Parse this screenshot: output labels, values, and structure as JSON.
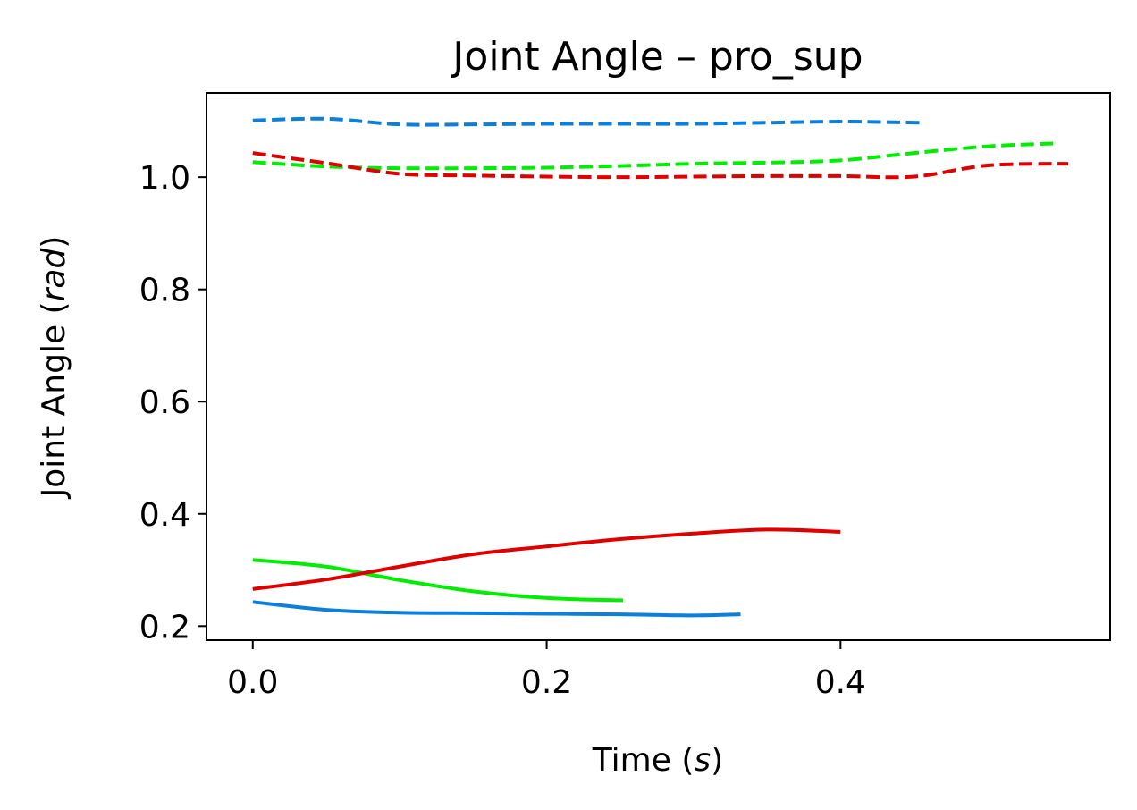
{
  "chart_data": {
    "type": "line",
    "title": "Joint Angle – pro_sup",
    "xlabel": {
      "prefix": "Time (",
      "unit": "s",
      "suffix": ")"
    },
    "ylabel": {
      "prefix": "Joint Angle (",
      "unit": "rad",
      "suffix": ")"
    },
    "xlim": [
      -0.0315,
      0.5835
    ],
    "ylim": [
      0.175,
      1.15
    ],
    "xticks": [
      0.0,
      0.2,
      0.4
    ],
    "xtick_labels": [
      "0.0",
      "0.2",
      "0.4"
    ],
    "yticks": [
      0.2,
      0.4,
      0.6,
      0.8,
      1.0
    ],
    "ytick_labels": [
      "0.2",
      "0.4",
      "0.6",
      "0.8",
      "1.0"
    ],
    "grid": false,
    "series": [
      {
        "color": "#0a7fdc",
        "dash": false,
        "points": [
          [
            0.0,
            0.243
          ],
          [
            0.05,
            0.229
          ],
          [
            0.1,
            0.224
          ],
          [
            0.15,
            0.223
          ],
          [
            0.2,
            0.222
          ],
          [
            0.25,
            0.221
          ],
          [
            0.3,
            0.219
          ],
          [
            0.332,
            0.221
          ]
        ]
      },
      {
        "color": "#00ee00",
        "dash": false,
        "points": [
          [
            0.0,
            0.318
          ],
          [
            0.05,
            0.306
          ],
          [
            0.1,
            0.282
          ],
          [
            0.15,
            0.262
          ],
          [
            0.2,
            0.25
          ],
          [
            0.252,
            0.246
          ]
        ]
      },
      {
        "color": "#e00000",
        "dash": false,
        "points": [
          [
            0.0,
            0.266
          ],
          [
            0.05,
            0.283
          ],
          [
            0.1,
            0.306
          ],
          [
            0.15,
            0.328
          ],
          [
            0.2,
            0.342
          ],
          [
            0.25,
            0.355
          ],
          [
            0.3,
            0.365
          ],
          [
            0.35,
            0.372
          ],
          [
            0.4,
            0.368
          ]
        ]
      },
      {
        "color": "#0a7fdc",
        "dash": true,
        "points": [
          [
            0.0,
            1.101
          ],
          [
            0.05,
            1.104
          ],
          [
            0.1,
            1.094
          ],
          [
            0.15,
            1.094
          ],
          [
            0.2,
            1.095
          ],
          [
            0.25,
            1.095
          ],
          [
            0.3,
            1.095
          ],
          [
            0.35,
            1.097
          ],
          [
            0.4,
            1.099
          ],
          [
            0.455,
            1.097
          ]
        ]
      },
      {
        "color": "#00ee00",
        "dash": true,
        "points": [
          [
            0.0,
            1.027
          ],
          [
            0.05,
            1.019
          ],
          [
            0.1,
            1.016
          ],
          [
            0.15,
            1.016
          ],
          [
            0.2,
            1.017
          ],
          [
            0.25,
            1.02
          ],
          [
            0.3,
            1.024
          ],
          [
            0.35,
            1.026
          ],
          [
            0.4,
            1.03
          ],
          [
            0.45,
            1.043
          ],
          [
            0.5,
            1.055
          ],
          [
            0.545,
            1.06
          ]
        ]
      },
      {
        "color": "#e00000",
        "dash": true,
        "points": [
          [
            0.0,
            1.043
          ],
          [
            0.05,
            1.025
          ],
          [
            0.1,
            1.006
          ],
          [
            0.15,
            1.003
          ],
          [
            0.2,
            1.001
          ],
          [
            0.25,
            1.0
          ],
          [
            0.3,
            1.001
          ],
          [
            0.35,
            1.002
          ],
          [
            0.4,
            1.002
          ],
          [
            0.45,
            1.001
          ],
          [
            0.5,
            1.021
          ],
          [
            0.555,
            1.024
          ]
        ]
      }
    ]
  }
}
